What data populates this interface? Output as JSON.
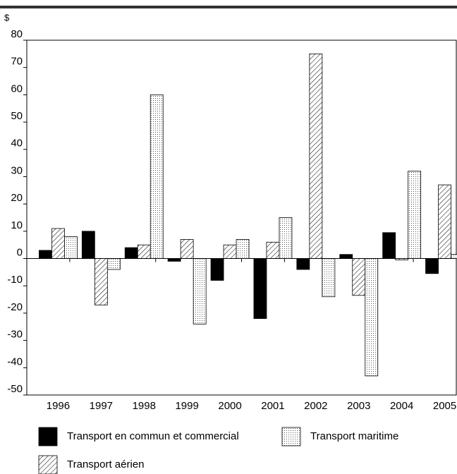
{
  "chart_data": {
    "type": "bar",
    "y_unit": "$",
    "categories": [
      "1996",
      "1997",
      "1998",
      "1999",
      "2000",
      "2001",
      "2002",
      "2003",
      "2004",
      "2005"
    ],
    "series": [
      {
        "name": "Transport en commun et commercial",
        "color": "#000000",
        "pattern": "solid",
        "values": [
          3,
          10,
          4,
          -1,
          -8,
          -22,
          -4,
          1.5,
          9.5,
          -5.5
        ]
      },
      {
        "name": "Transport aérien",
        "color": "#000000",
        "pattern": "hatch",
        "values": [
          11,
          -17,
          5,
          7,
          5,
          6,
          75,
          -13.5,
          -0.5,
          27
        ]
      },
      {
        "name": "Transport maritime",
        "color": "#000000",
        "pattern": "dots",
        "values": [
          8,
          -4,
          60,
          -24,
          7,
          15,
          -14,
          -43,
          32,
          1.5
        ]
      }
    ],
    "ylim": [
      -50,
      80
    ],
    "yticks": [
      -50,
      -40,
      -30,
      -20,
      -10,
      0,
      10,
      20,
      30,
      40,
      50,
      60,
      70,
      80
    ],
    "grid": false
  }
}
